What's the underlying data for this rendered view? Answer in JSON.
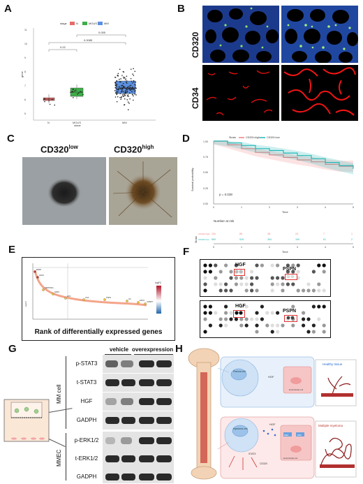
{
  "panels": {
    "A": "A",
    "B": "B",
    "C": "C",
    "D": "D",
    "E": "E",
    "F": "F",
    "G": "G",
    "H": "H"
  },
  "panel_a": {
    "legend_title": "stage",
    "legend_items": [
      "N",
      "MGUS",
      "MM"
    ],
    "legend_colors": [
      "#e56b6b",
      "#3fae49",
      "#5b8fe0"
    ],
    "pvalues": [
      "0.02",
      "0.0085",
      "0.055"
    ],
    "ylabel": "gene",
    "xlabel": "stage",
    "xticks": [
      "N",
      "MGUS",
      "MM"
    ],
    "yticks": [
      "5",
      "6",
      "7",
      "8",
      "9",
      "10",
      "11"
    ],
    "chart_data": {
      "type": "box",
      "categories": [
        "N",
        "MGUS",
        "MM"
      ],
      "medians": [
        6.0,
        6.5,
        6.8
      ],
      "q1": [
        5.9,
        6.2,
        6.4
      ],
      "q3": [
        6.1,
        6.8,
        7.3
      ],
      "ylim": [
        5,
        11
      ]
    }
  },
  "panel_b": {
    "row1": "CD320",
    "row2": "CD34"
  },
  "panel_c": {
    "left": "CD320",
    "left_sup": "low",
    "right": "CD320",
    "right_sup": "high"
  },
  "panel_d": {
    "legend_title": "Strata",
    "legend_items": [
      "CD320=high",
      "CD320=low"
    ],
    "colors": [
      "#f08080",
      "#25b7b7"
    ],
    "ylabel": "Survival probability",
    "xlabel": "Time",
    "yticks": [
      "0.00",
      "0.25",
      "0.50",
      "0.75",
      "1.00"
    ],
    "xticks": [
      "0",
      "1",
      "2",
      "3",
      "4",
      "5"
    ],
    "pvalue": "p = 0.038",
    "risk_title": "Number at risk",
    "risk_strata_label": "Strata",
    "risk_high": [
      "116",
      "85",
      "38",
      "24",
      "7",
      "1"
    ],
    "risk_low": [
      "669",
      "528",
      "364",
      "169",
      "61",
      "2"
    ],
    "chart_data": {
      "type": "line",
      "x": [
        0,
        0.5,
        1,
        1.5,
        2,
        2.5,
        3,
        3.5,
        4,
        4.5,
        5
      ],
      "series": [
        {
          "name": "CD320=high",
          "values": [
            1.0,
            0.94,
            0.88,
            0.82,
            0.78,
            0.74,
            0.7,
            0.67,
            0.63,
            0.6,
            0.6
          ]
        },
        {
          "name": "CD320=low",
          "values": [
            1.0,
            0.97,
            0.93,
            0.88,
            0.85,
            0.81,
            0.77,
            0.72,
            0.66,
            0.61,
            0.56
          ]
        }
      ],
      "ylim": [
        0,
        1
      ],
      "xlim": [
        0,
        5
      ]
    }
  },
  "panel_e": {
    "ylabel": "logFC",
    "legend_title": "logFC",
    "gene_labels": [
      "BMP6",
      "GDF2",
      "SERPINF1",
      "NRP2",
      "EPO",
      "HGF",
      "PSPN",
      "IL6",
      "EDN1",
      "IGFBP7"
    ],
    "caption": "Rank of differentially expressed genes"
  },
  "panel_f": {
    "top_labels": [
      "HGF",
      "PSPN"
    ],
    "bottom_labels": [
      "HGF",
      "PSPN"
    ]
  },
  "panel_g": {
    "col1": "vehicle",
    "col2": "overexpression",
    "rows": [
      "p-STAT3",
      "t-STAT3",
      "HGF",
      "GADPH",
      "p-ERK1/2",
      "t-ERK1/2",
      "GADPH"
    ],
    "group1": "MM cell",
    "group2": "MMEC"
  },
  "panel_h": {
    "top_label": "Healthy tissue",
    "bottom_label": "Multiple myeloma",
    "plasma_cell": "Plasma cell",
    "myeloma_cell": "Myeloma cell",
    "endothelial_cell": "Endothelial cell",
    "hgf": "HGF",
    "cd320": "CD320",
    "mek": "MEK",
    "erk": "ERK",
    "stat3": "STAT3"
  }
}
